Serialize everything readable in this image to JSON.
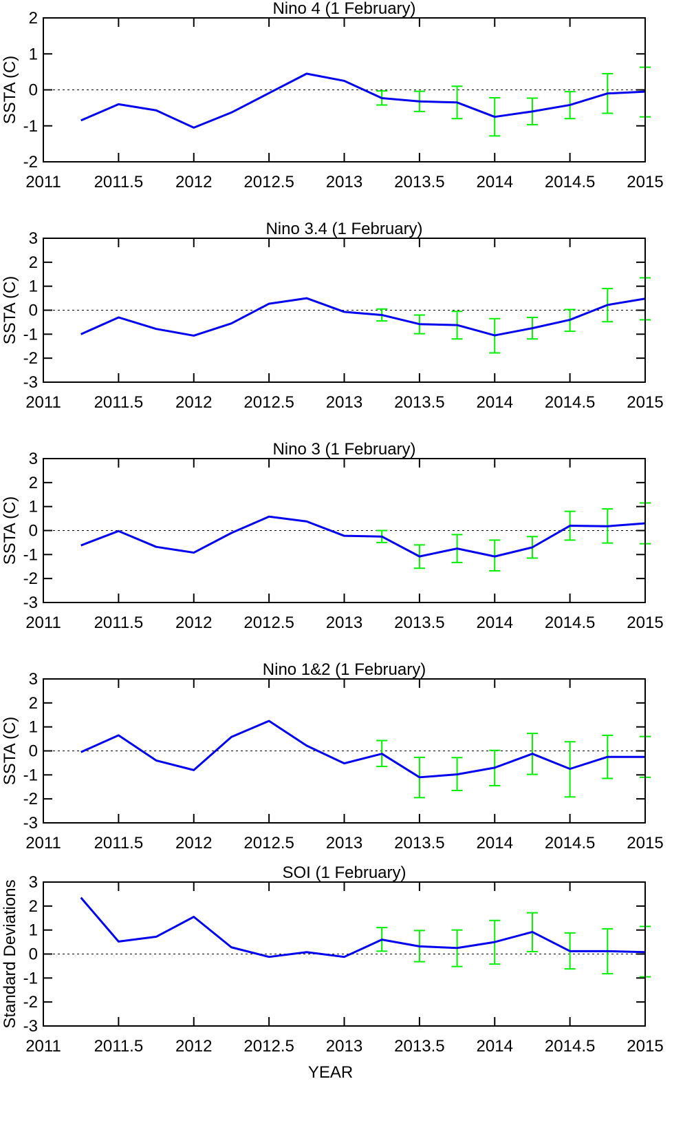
{
  "chart_data": [
    {
      "type": "line",
      "title": "Nino 4 (1 February)",
      "ylabel": "SSTA (C)",
      "xlim": [
        2011,
        2015
      ],
      "ylim": [
        -2,
        2
      ],
      "xticks": [
        2011,
        2011.5,
        2012,
        2012.5,
        2013,
        2013.5,
        2014,
        2014.5,
        2015
      ],
      "xtick_labels": [
        "2011",
        "2011.5",
        "2012",
        "2012.5",
        "2013",
        "2013.5",
        "2014",
        "2014.5",
        "2015"
      ],
      "yticks": [
        -2,
        -1,
        0,
        1,
        2
      ],
      "ytick_labels": [
        "-2",
        "-1",
        "0",
        "1",
        "2"
      ],
      "zero_line": true,
      "series": [
        {
          "color": "#0000ee",
          "x": [
            2011.25,
            2011.5,
            2011.75,
            2012,
            2012.25,
            2012.5,
            2012.75,
            2013,
            2013.25,
            2013.5,
            2013.75,
            2014,
            2014.25,
            2014.5,
            2014.75,
            2015
          ],
          "y": [
            -0.85,
            -0.4,
            -0.57,
            -1.05,
            -0.63,
            -0.09,
            0.45,
            0.25,
            -0.23,
            -0.32,
            -0.35,
            -0.75,
            -0.6,
            -0.42,
            -0.1,
            -0.05
          ]
        },
        {
          "color": "#00ee00",
          "type": "errorbar",
          "x": [
            2013.25,
            2013.5,
            2013.75,
            2014,
            2014.25,
            2014.5,
            2014.75,
            2015
          ],
          "low": [
            -0.42,
            -0.6,
            -0.8,
            -1.28,
            -0.97,
            -0.8,
            -0.65,
            -0.75
          ],
          "high": [
            -0.03,
            -0.04,
            0.1,
            -0.22,
            -0.23,
            -0.05,
            0.45,
            0.63
          ]
        }
      ]
    },
    {
      "type": "line",
      "title": "Nino 3.4 (1 February)",
      "ylabel": "SSTA (C)",
      "xlim": [
        2011,
        2015
      ],
      "ylim": [
        -3,
        3
      ],
      "xticks": [
        2011,
        2011.5,
        2012,
        2012.5,
        2013,
        2013.5,
        2014,
        2014.5,
        2015
      ],
      "xtick_labels": [
        "2011",
        "2011.5",
        "2012",
        "2012.5",
        "2013",
        "2013.5",
        "2014",
        "2014.5",
        "2015"
      ],
      "yticks": [
        -3,
        -2,
        -1,
        0,
        1,
        2,
        3
      ],
      "ytick_labels": [
        "-3",
        "-2",
        "-1",
        "0",
        "1",
        "2",
        "3"
      ],
      "zero_line": true,
      "series": [
        {
          "color": "#0000ee",
          "x": [
            2011.25,
            2011.5,
            2011.75,
            2012,
            2012.25,
            2012.5,
            2012.75,
            2013,
            2013.25,
            2013.5,
            2013.75,
            2014,
            2014.25,
            2014.5,
            2014.75,
            2015
          ],
          "y": [
            -1.0,
            -0.3,
            -0.78,
            -1.06,
            -0.55,
            0.27,
            0.5,
            -0.07,
            -0.2,
            -0.58,
            -0.62,
            -1.05,
            -0.75,
            -0.4,
            0.22,
            0.48
          ]
        },
        {
          "color": "#00ee00",
          "type": "errorbar",
          "x": [
            2013.25,
            2013.5,
            2013.75,
            2014,
            2014.25,
            2014.5,
            2014.75,
            2015
          ],
          "low": [
            -0.45,
            -0.98,
            -1.2,
            -1.78,
            -1.2,
            -0.88,
            -0.48,
            -0.4
          ],
          "high": [
            0.05,
            -0.2,
            -0.05,
            -0.35,
            -0.3,
            0.03,
            0.9,
            1.35
          ]
        }
      ]
    },
    {
      "type": "line",
      "title": "Nino 3 (1 February)",
      "ylabel": "SSTA (C)",
      "xlim": [
        2011,
        2015
      ],
      "ylim": [
        -3,
        3
      ],
      "xticks": [
        2011,
        2011.5,
        2012,
        2012.5,
        2013,
        2013.5,
        2014,
        2014.5,
        2015
      ],
      "xtick_labels": [
        "2011",
        "2011.5",
        "2012",
        "2012.5",
        "2013",
        "2013.5",
        "2014",
        "2014.5",
        "2015"
      ],
      "yticks": [
        -3,
        -2,
        -1,
        0,
        1,
        2,
        3
      ],
      "ytick_labels": [
        "-3",
        "-2",
        "-1",
        "0",
        "1",
        "2",
        "3"
      ],
      "zero_line": true,
      "series": [
        {
          "color": "#0000ee",
          "x": [
            2011.25,
            2011.5,
            2011.75,
            2012,
            2012.25,
            2012.5,
            2012.75,
            2013,
            2013.25,
            2013.5,
            2013.75,
            2014,
            2014.25,
            2014.5,
            2014.75,
            2015
          ],
          "y": [
            -0.62,
            -0.02,
            -0.68,
            -0.92,
            -0.1,
            0.58,
            0.38,
            -0.22,
            -0.25,
            -1.08,
            -0.75,
            -1.08,
            -0.7,
            0.2,
            0.18,
            0.3
          ]
        },
        {
          "color": "#00ee00",
          "type": "errorbar",
          "x": [
            2013.25,
            2013.5,
            2013.75,
            2014,
            2014.25,
            2014.5,
            2014.75,
            2015
          ],
          "low": [
            -0.5,
            -1.57,
            -1.33,
            -1.68,
            -1.15,
            -0.4,
            -0.52,
            -0.55
          ],
          "high": [
            0.0,
            -0.6,
            -0.17,
            -0.4,
            -0.25,
            0.8,
            0.9,
            1.15
          ]
        }
      ]
    },
    {
      "type": "line",
      "title": "Nino 1&2 (1 February)",
      "ylabel": "SSTA (C)",
      "xlim": [
        2011,
        2015
      ],
      "ylim": [
        -3,
        3
      ],
      "xticks": [
        2011,
        2011.5,
        2012,
        2012.5,
        2013,
        2013.5,
        2014,
        2014.5,
        2015
      ],
      "xtick_labels": [
        "2011",
        "2011.5",
        "2012",
        "2012.5",
        "2013",
        "2013.5",
        "2014",
        "2014.5",
        "2015"
      ],
      "yticks": [
        -3,
        -2,
        -1,
        0,
        1,
        2,
        3
      ],
      "ytick_labels": [
        "-3",
        "-2",
        "-1",
        "0",
        "1",
        "2",
        "3"
      ],
      "zero_line": true,
      "series": [
        {
          "color": "#0000ee",
          "x": [
            2011.25,
            2011.5,
            2011.75,
            2012,
            2012.25,
            2012.5,
            2012.75,
            2013,
            2013.25,
            2013.5,
            2013.75,
            2014,
            2014.25,
            2014.5,
            2014.75,
            2015
          ],
          "y": [
            -0.05,
            0.65,
            -0.4,
            -0.8,
            0.58,
            1.25,
            0.22,
            -0.52,
            -0.12,
            -1.1,
            -0.98,
            -0.7,
            -0.12,
            -0.75,
            -0.25,
            -0.25
          ]
        },
        {
          "color": "#00ee00",
          "type": "errorbar",
          "x": [
            2013.25,
            2013.5,
            2013.75,
            2014,
            2014.25,
            2014.5,
            2014.75,
            2015
          ],
          "low": [
            -0.65,
            -1.95,
            -1.65,
            -1.45,
            -0.98,
            -1.92,
            -1.15,
            -1.1
          ],
          "high": [
            0.43,
            -0.27,
            -0.28,
            0.02,
            0.73,
            0.38,
            0.65,
            0.6
          ]
        }
      ]
    },
    {
      "type": "line",
      "title": "SOI (1 February)",
      "ylabel": "Standard Deviations",
      "xlabel": "YEAR",
      "xlim": [
        2011,
        2015
      ],
      "ylim": [
        -3,
        3
      ],
      "xticks": [
        2011,
        2011.5,
        2012,
        2012.5,
        2013,
        2013.5,
        2014,
        2014.5,
        2015
      ],
      "xtick_labels": [
        "2011",
        "2011.5",
        "2012",
        "2012.5",
        "2013",
        "2013.5",
        "2014",
        "2014.5",
        "2015"
      ],
      "yticks": [
        -3,
        -2,
        -1,
        0,
        1,
        2,
        3
      ],
      "ytick_labels": [
        "-3",
        "-2",
        "-1",
        "0",
        "1",
        "2",
        "3"
      ],
      "zero_line": true,
      "series": [
        {
          "color": "#0000ee",
          "x": [
            2011.25,
            2011.5,
            2011.75,
            2012,
            2012.25,
            2012.5,
            2012.75,
            2013,
            2013.25,
            2013.5,
            2013.75,
            2014,
            2014.25,
            2014.5,
            2014.75,
            2015
          ],
          "y": [
            2.35,
            0.52,
            0.72,
            1.55,
            0.28,
            -0.12,
            0.08,
            -0.12,
            0.6,
            0.32,
            0.25,
            0.5,
            0.92,
            0.12,
            0.12,
            0.08
          ]
        },
        {
          "color": "#00ee00",
          "type": "errorbar",
          "x": [
            2013.25,
            2013.5,
            2013.75,
            2014,
            2014.25,
            2014.5,
            2014.75,
            2015
          ],
          "low": [
            0.12,
            -0.32,
            -0.52,
            -0.42,
            0.1,
            -0.62,
            -0.82,
            -0.95
          ],
          "high": [
            1.1,
            0.98,
            1.0,
            1.4,
            1.72,
            0.88,
            1.05,
            1.15
          ]
        }
      ]
    }
  ]
}
